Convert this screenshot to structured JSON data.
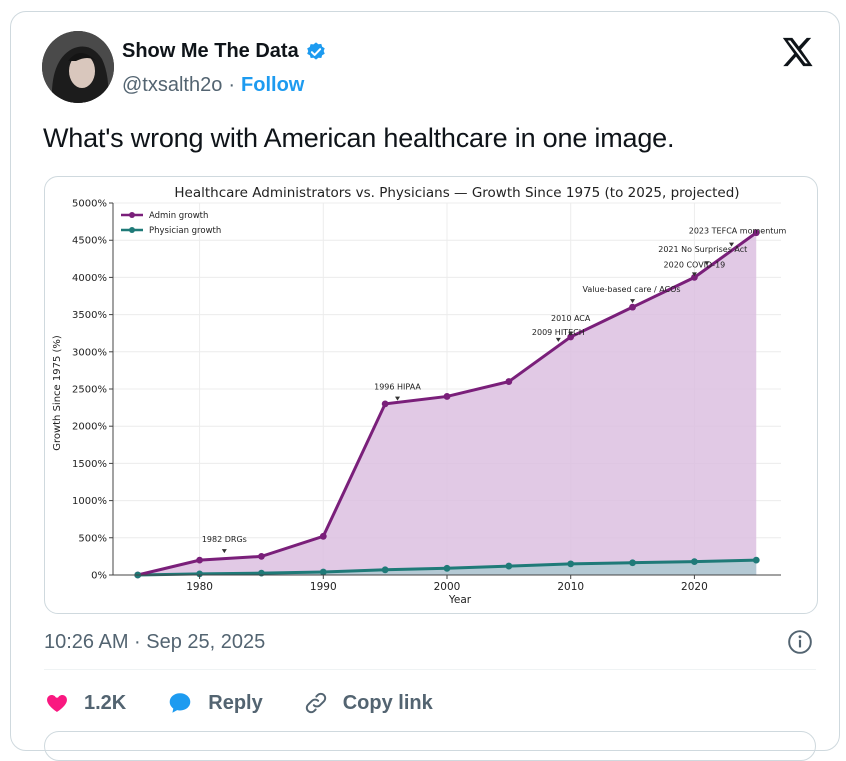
{
  "author": {
    "name": "Show Me The Data",
    "handle": "@txsalth2o",
    "separator": "·",
    "follow_label": "Follow"
  },
  "icons": {
    "verified": "verified-badge-icon",
    "brand": "x-logo-icon",
    "info": "info-icon",
    "like": "heart-icon",
    "reply": "reply-bubble-icon",
    "copy": "link-icon"
  },
  "colors": {
    "verified": "#1d9bf0",
    "like": "#f91880",
    "admin_series": "#7a1f7a",
    "physician_series": "#1f7a78",
    "admin_fill": "#dcbfe0"
  },
  "tweet": {
    "text": "What's wrong with American healthcare in one image.",
    "timestamp": "10:26 AM · Sep 25, 2025"
  },
  "actions": {
    "likes": "1.2K",
    "reply": "Reply",
    "copy_link": "Copy link"
  },
  "chart_data": {
    "type": "line",
    "title": "Healthcare Administrators vs. Physicians — Growth Since 1975 (to 2025, projected)",
    "xlabel": "Year",
    "ylabel": "Growth Since 1975 (%)",
    "xlim": [
      1973,
      2027
    ],
    "ylim": [
      0,
      5000
    ],
    "xticks": [
      1980,
      1990,
      2000,
      2010,
      2020
    ],
    "yticks": [
      0,
      500,
      1000,
      1500,
      2000,
      2500,
      3000,
      3500,
      4000,
      4500,
      5000
    ],
    "ytick_labels": [
      "0%",
      "500%",
      "1000%",
      "1500%",
      "2000%",
      "2500%",
      "3000%",
      "3500%",
      "4000%",
      "4500%",
      "5000%"
    ],
    "legend_position": "top-left",
    "area_fill_under_admin": true,
    "series": [
      {
        "name": "Admin growth",
        "x": [
          1975,
          1980,
          1985,
          1990,
          1995,
          2000,
          2005,
          2010,
          2015,
          2020,
          2025
        ],
        "y": [
          0,
          200,
          250,
          520,
          2300,
          2400,
          2600,
          3200,
          3600,
          4000,
          4600
        ]
      },
      {
        "name": "Physician growth",
        "x": [
          1975,
          1980,
          1985,
          1990,
          1995,
          2000,
          2005,
          2010,
          2015,
          2020,
          2025
        ],
        "y": [
          0,
          15,
          25,
          40,
          70,
          90,
          120,
          150,
          165,
          180,
          200
        ]
      }
    ],
    "annotations": [
      {
        "text": "1982 DRGs",
        "x": 1982,
        "y": 280
      },
      {
        "text": "1996 HIPAA",
        "x": 1996,
        "y": 2330
      },
      {
        "text": "2009 HITECH",
        "x": 2009,
        "y": 3120
      },
      {
        "text": "2010 ACA",
        "x": 2010,
        "y": 3200
      },
      {
        "text": "Value-based care / ACOs",
        "x": 2015,
        "y": 3640
      },
      {
        "text": "2020 COVID-19",
        "x": 2020,
        "y": 4000
      },
      {
        "text": "2021 No Surprises Act",
        "x": 2021,
        "y": 4150
      },
      {
        "text": "2023 TEFCA momentum",
        "x": 2023,
        "y": 4400
      }
    ]
  }
}
